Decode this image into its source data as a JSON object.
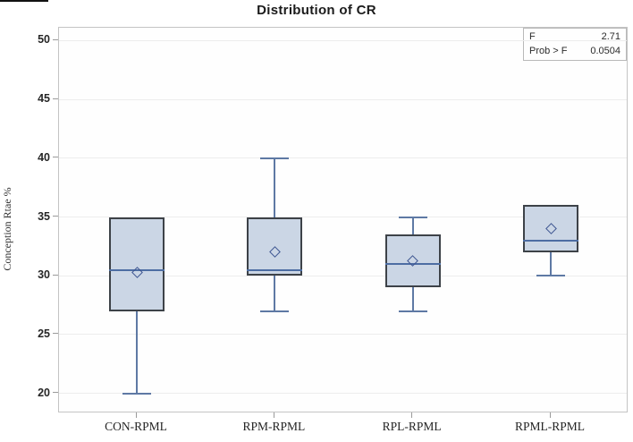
{
  "title": "Distribution of CR",
  "y_axis_label": "Conception Rtae %",
  "stats_box": {
    "rows": [
      {
        "label": "F",
        "value": "2.71"
      },
      {
        "label": "Prob > F",
        "value": "0.0504"
      }
    ]
  },
  "chart_data": {
    "type": "boxplot",
    "title": "Distribution of CR",
    "xlabel": "",
    "ylabel": "Conception Rtae %",
    "ylim": [
      18.3,
      51.1
    ],
    "yticks": [
      20,
      25,
      30,
      35,
      40,
      45,
      50
    ],
    "grid": "horizontal",
    "legend": "none",
    "categories": [
      "CON-RPML",
      "RPM-RPML",
      "RPL-RPML",
      "RPML-RPML"
    ],
    "series": [
      {
        "category": "CON-RPML",
        "whisker_low": 20,
        "q1": 27,
        "median": 30.5,
        "q3": 35,
        "whisker_high": 35,
        "mean": 30.3
      },
      {
        "category": "RPM-RPML",
        "whisker_low": 27,
        "q1": 30,
        "median": 30.5,
        "q3": 35,
        "whisker_high": 40,
        "mean": 32
      },
      {
        "category": "RPL-RPML",
        "whisker_low": 27,
        "q1": 29,
        "median": 31,
        "q3": 33.5,
        "whisker_high": 35,
        "mean": 31.3
      },
      {
        "category": "RPML-RPML",
        "whisker_low": 30,
        "q1": 32,
        "median": 33,
        "q3": 36,
        "whisker_high": 36,
        "mean": 34
      }
    ],
    "annotation": {
      "F": "2.71",
      "Prob > F": "0.0504"
    },
    "colors": {
      "box_fill": "#cbd6e5",
      "box_border": "#3d4248",
      "median_line": "#4d6da3",
      "whisker": "#5e79a4",
      "mean_marker_border": "#3d5591",
      "grid_line": "#ededed",
      "frame_border": "#c4c4c4",
      "tick_mark": "#9a9a9a",
      "text": "#242424"
    }
  }
}
